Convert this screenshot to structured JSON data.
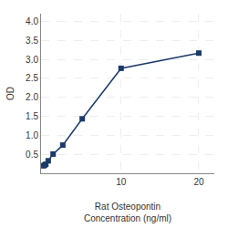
{
  "chart_data": {
    "type": "line",
    "xlabel": "Rat Osteopontin\nConcentration (ng/ml)",
    "ylabel": "OD",
    "x": [
      0,
      0.156,
      0.313,
      0.625,
      1.25,
      2.5,
      5,
      10,
      20
    ],
    "values": [
      0.197,
      0.214,
      0.238,
      0.329,
      0.506,
      0.741,
      1.433,
      2.762,
      3.163
    ],
    "color": "#1a3a6b",
    "marker": "square",
    "line_style": "solid",
    "xlim": [
      -0.3,
      22
    ],
    "xticks": [
      10,
      20
    ],
    "ylim": [
      0.0,
      4.2
    ],
    "yticks": [
      0.5,
      {
        "value": 1.0,
        "label": "1.0"
      },
      1.5,
      {
        "value": 2.0,
        "label": "2.0"
      },
      2.5,
      {
        "value": 3.0,
        "label": "3.0"
      },
      3.5,
      {
        "value": 4.0,
        "label": "4.0"
      }
    ],
    "grid": true
  }
}
